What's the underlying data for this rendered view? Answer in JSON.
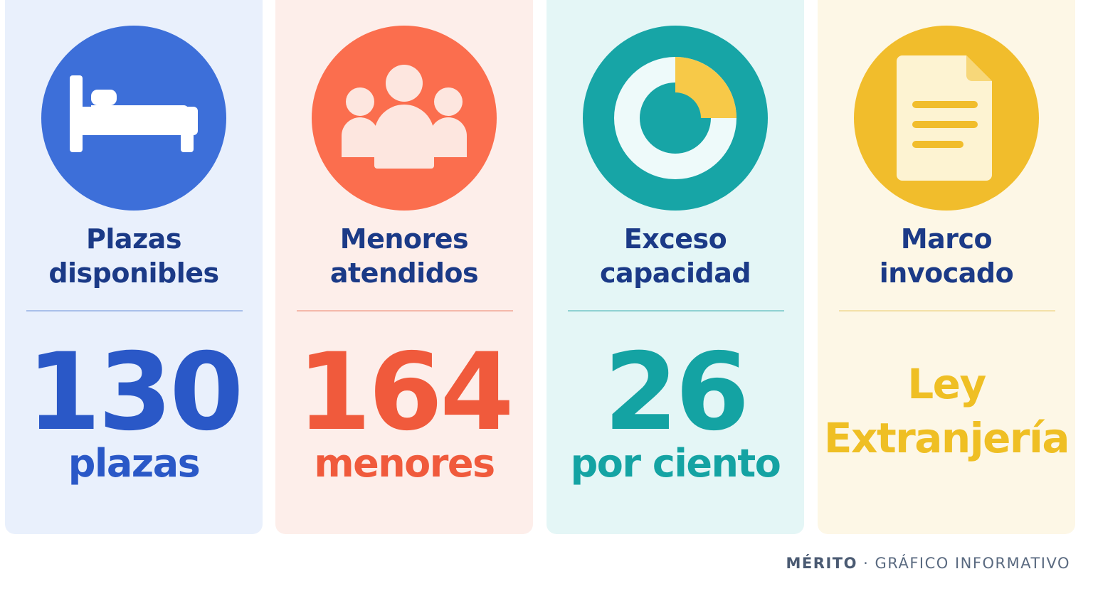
{
  "cards": [
    {
      "icon": "bed-icon",
      "label_line1": "Plazas",
      "label_line2": "disponibles",
      "value": "130",
      "unit": "plazas",
      "color": "#3d6fd9"
    },
    {
      "icon": "people-icon",
      "label_line1": "Menores",
      "label_line2": "atendidos",
      "value": "164",
      "unit": "menores",
      "color": "#fb6e4e"
    },
    {
      "icon": "donut-chart-icon",
      "label_line1": "Exceso",
      "label_line2": "capacidad",
      "value": "26",
      "unit": "por ciento",
      "color": "#17a5a6"
    },
    {
      "icon": "document-icon",
      "label_line1": "Marco",
      "label_line2": "invocado",
      "value_line1": "Ley",
      "value_line2": "Extranjería",
      "color": "#f1bd2c"
    }
  ],
  "footer": {
    "brand": "MÉRITO",
    "separator": " · ",
    "caption": "GRÁFICO INFORMATIVO"
  }
}
